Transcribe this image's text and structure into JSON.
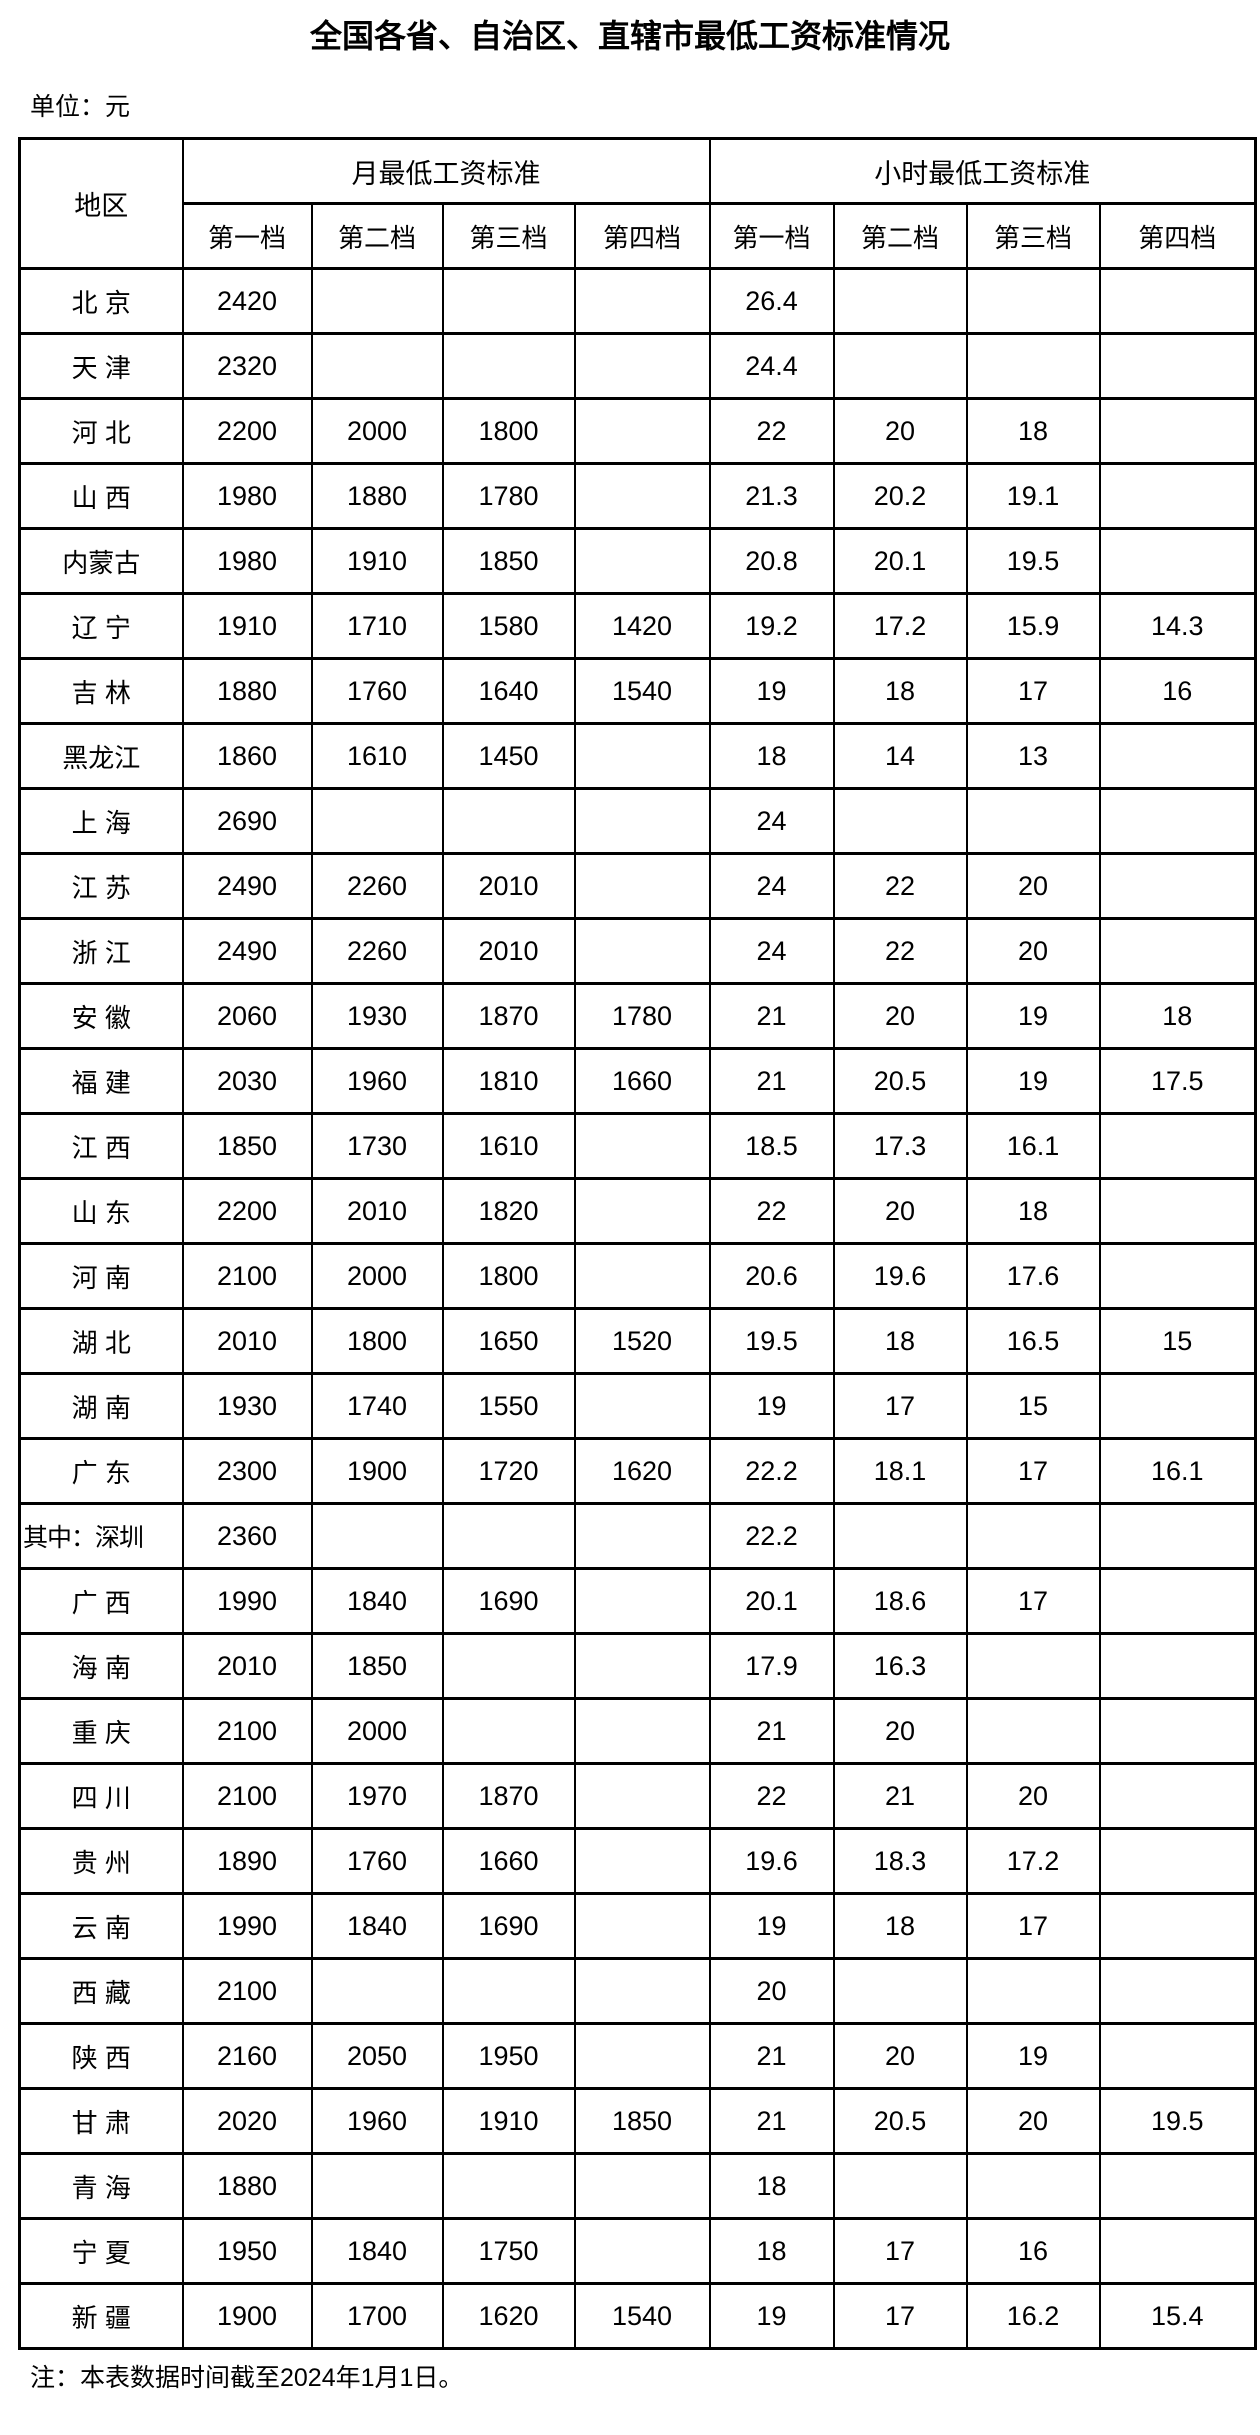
{
  "title": "全国各省、自治区、直辖市最低工资标准情况",
  "unit_label": "单位：元",
  "note": "注：本表数据时间截至2024年1月1日。",
  "colors": {
    "text": "#000000",
    "background": "#ffffff",
    "border": "#000000"
  },
  "table": {
    "region_header": "地区",
    "monthly_group_header": "月最低工资标准",
    "hourly_group_header": "小时最低工资标准",
    "tier_headers": [
      "第一档",
      "第二档",
      "第三档",
      "第四档"
    ],
    "rows": [
      {
        "region": "北 京",
        "monthly": [
          "2420",
          "",
          "",
          ""
        ],
        "hourly": [
          "26.4",
          "",
          "",
          ""
        ]
      },
      {
        "region": "天 津",
        "monthly": [
          "2320",
          "",
          "",
          ""
        ],
        "hourly": [
          "24.4",
          "",
          "",
          ""
        ]
      },
      {
        "region": "河 北",
        "monthly": [
          "2200",
          "2000",
          "1800",
          ""
        ],
        "hourly": [
          "22",
          "20",
          "18",
          ""
        ]
      },
      {
        "region": "山 西",
        "monthly": [
          "1980",
          "1880",
          "1780",
          ""
        ],
        "hourly": [
          "21.3",
          "20.2",
          "19.1",
          ""
        ]
      },
      {
        "region": "内蒙古",
        "monthly": [
          "1980",
          "1910",
          "1850",
          ""
        ],
        "hourly": [
          "20.8",
          "20.1",
          "19.5",
          ""
        ]
      },
      {
        "region": "辽 宁",
        "monthly": [
          "1910",
          "1710",
          "1580",
          "1420"
        ],
        "hourly": [
          "19.2",
          "17.2",
          "15.9",
          "14.3"
        ]
      },
      {
        "region": "吉 林",
        "monthly": [
          "1880",
          "1760",
          "1640",
          "1540"
        ],
        "hourly": [
          "19",
          "18",
          "17",
          "16"
        ]
      },
      {
        "region": "黑龙江",
        "monthly": [
          "1860",
          "1610",
          "1450",
          ""
        ],
        "hourly": [
          "18",
          "14",
          "13",
          ""
        ]
      },
      {
        "region": "上 海",
        "monthly": [
          "2690",
          "",
          "",
          ""
        ],
        "hourly": [
          "24",
          "",
          "",
          ""
        ]
      },
      {
        "region": "江 苏",
        "monthly": [
          "2490",
          "2260",
          "2010",
          ""
        ],
        "hourly": [
          "24",
          "22",
          "20",
          ""
        ]
      },
      {
        "region": "浙 江",
        "monthly": [
          "2490",
          "2260",
          "2010",
          ""
        ],
        "hourly": [
          "24",
          "22",
          "20",
          ""
        ]
      },
      {
        "region": "安 徽",
        "monthly": [
          "2060",
          "1930",
          "1870",
          "1780"
        ],
        "hourly": [
          "21",
          "20",
          "19",
          "18"
        ]
      },
      {
        "region": "福 建",
        "monthly": [
          "2030",
          "1960",
          "1810",
          "1660"
        ],
        "hourly": [
          "21",
          "20.5",
          "19",
          "17.5"
        ]
      },
      {
        "region": "江 西",
        "monthly": [
          "1850",
          "1730",
          "1610",
          ""
        ],
        "hourly": [
          "18.5",
          "17.3",
          "16.1",
          ""
        ]
      },
      {
        "region": "山 东",
        "monthly": [
          "2200",
          "2010",
          "1820",
          ""
        ],
        "hourly": [
          "22",
          "20",
          "18",
          ""
        ]
      },
      {
        "region": "河 南",
        "monthly": [
          "2100",
          "2000",
          "1800",
          ""
        ],
        "hourly": [
          "20.6",
          "19.6",
          "17.6",
          ""
        ]
      },
      {
        "region": "湖 北",
        "monthly": [
          "2010",
          "1800",
          "1650",
          "1520"
        ],
        "hourly": [
          "19.5",
          "18",
          "16.5",
          "15"
        ]
      },
      {
        "region": "湖 南",
        "monthly": [
          "1930",
          "1740",
          "1550",
          ""
        ],
        "hourly": [
          "19",
          "17",
          "15",
          ""
        ]
      },
      {
        "region": "广 东",
        "monthly": [
          "2300",
          "1900",
          "1720",
          "1620"
        ],
        "hourly": [
          "22.2",
          "18.1",
          "17",
          "16.1"
        ]
      },
      {
        "region": "其中：深圳",
        "sub": true,
        "monthly": [
          "2360",
          "",
          "",
          ""
        ],
        "hourly": [
          "22.2",
          "",
          "",
          ""
        ]
      },
      {
        "region": "广 西",
        "monthly": [
          "1990",
          "1840",
          "1690",
          ""
        ],
        "hourly": [
          "20.1",
          "18.6",
          "17",
          ""
        ]
      },
      {
        "region": "海 南",
        "monthly": [
          "2010",
          "1850",
          "",
          ""
        ],
        "hourly": [
          "17.9",
          "16.3",
          "",
          ""
        ]
      },
      {
        "region": "重 庆",
        "monthly": [
          "2100",
          "2000",
          "",
          ""
        ],
        "hourly": [
          "21",
          "20",
          "",
          ""
        ]
      },
      {
        "region": "四 川",
        "monthly": [
          "2100",
          "1970",
          "1870",
          ""
        ],
        "hourly": [
          "22",
          "21",
          "20",
          ""
        ]
      },
      {
        "region": "贵 州",
        "monthly": [
          "1890",
          "1760",
          "1660",
          ""
        ],
        "hourly": [
          "19.6",
          "18.3",
          "17.2",
          ""
        ]
      },
      {
        "region": "云 南",
        "monthly": [
          "1990",
          "1840",
          "1690",
          ""
        ],
        "hourly": [
          "19",
          "18",
          "17",
          ""
        ]
      },
      {
        "region": "西 藏",
        "monthly": [
          "2100",
          "",
          "",
          ""
        ],
        "hourly": [
          "20",
          "",
          "",
          ""
        ]
      },
      {
        "region": "陕 西",
        "monthly": [
          "2160",
          "2050",
          "1950",
          ""
        ],
        "hourly": [
          "21",
          "20",
          "19",
          ""
        ]
      },
      {
        "region": "甘 肃",
        "monthly": [
          "2020",
          "1960",
          "1910",
          "1850"
        ],
        "hourly": [
          "21",
          "20.5",
          "20",
          "19.5"
        ]
      },
      {
        "region": "青 海",
        "monthly": [
          "1880",
          "",
          "",
          ""
        ],
        "hourly": [
          "18",
          "",
          "",
          ""
        ]
      },
      {
        "region": "宁 夏",
        "monthly": [
          "1950",
          "1840",
          "1750",
          ""
        ],
        "hourly": [
          "18",
          "17",
          "16",
          ""
        ]
      },
      {
        "region": "新 疆",
        "monthly": [
          "1900",
          "1700",
          "1620",
          "1540"
        ],
        "hourly": [
          "19",
          "17",
          "16.2",
          "15.4"
        ]
      }
    ]
  }
}
